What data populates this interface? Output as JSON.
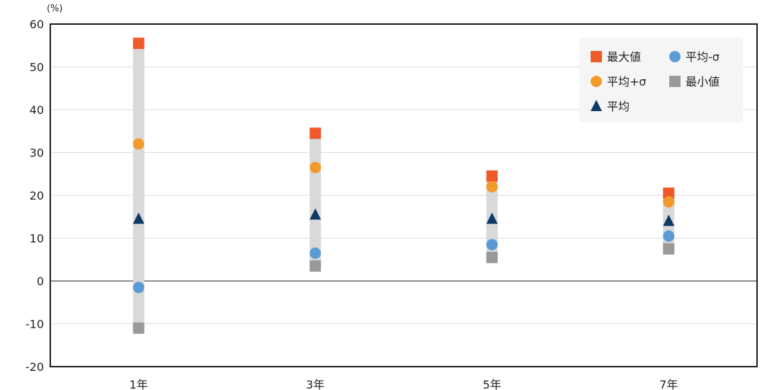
{
  "chart_data": {
    "type": "scatter",
    "y_unit_label": "(%)",
    "categories": [
      "1年",
      "3年",
      "5年",
      "7年"
    ],
    "ylim": [
      -20,
      60
    ],
    "yticks": [
      60,
      50,
      40,
      30,
      20,
      10,
      0,
      -10,
      -20
    ],
    "grid": true,
    "legend_position": "top-right",
    "range_bar_color": "#d9d9d9",
    "series": [
      {
        "name": "最大値",
        "marker": "square",
        "color": "#ef5a2a",
        "values": [
          55.5,
          34.5,
          24.5,
          20.5
        ]
      },
      {
        "name": "平均+σ",
        "marker": "circle",
        "color": "#f39a2b",
        "values": [
          32,
          26.5,
          22,
          18.5
        ]
      },
      {
        "name": "平均",
        "marker": "triangle",
        "color": "#0d3a66",
        "values": [
          14.5,
          15.5,
          14.5,
          14
        ]
      },
      {
        "name": "平均-σ",
        "marker": "circle",
        "color": "#5b9bd5",
        "values": [
          -1.5,
          6.5,
          8.5,
          10.5
        ]
      },
      {
        "name": "最小値",
        "marker": "square",
        "color": "#999999",
        "values": [
          -11,
          3.5,
          5.5,
          7.5
        ]
      }
    ]
  }
}
